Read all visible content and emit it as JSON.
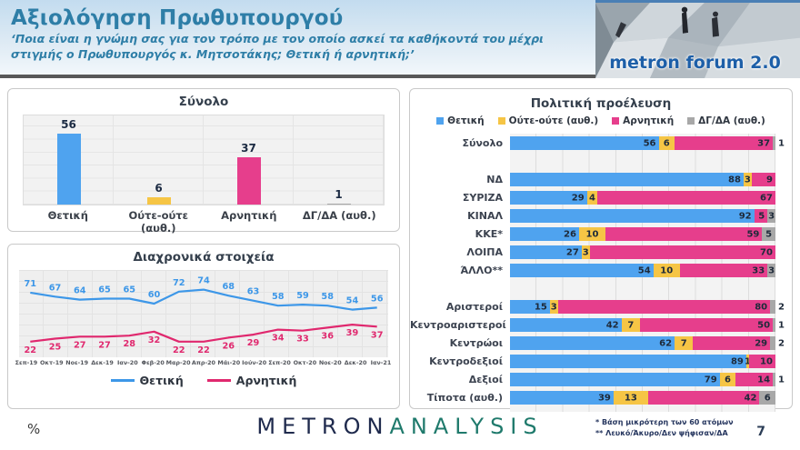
{
  "header": {
    "title": "Αξιολόγηση Πρωθυπουργού",
    "subtitle": "‘Ποια είναι η γνώμη σας για τον τρόπο με τον οποίο ασκεί τα καθήκοντά του μέχρι στιγμής ο Πρωθυπουργός κ. Μητσοτάκης; Θετική ή αρνητική;’"
  },
  "logo": {
    "text": "metron forum 2.0"
  },
  "colors": {
    "positive": "#4FA3EF",
    "neither": "#F6C545",
    "negative": "#E63E8C",
    "dk": "#A8A8A8",
    "accent_teal": "#2E7EA7",
    "header_divider": "#585858"
  },
  "chart_data": [
    {
      "type": "bar",
      "title": "Σύνολο",
      "categories": [
        "Θετική",
        "Ούτε-ούτε (αυθ.)",
        "Αρνητική",
        "ΔΓ/ΔΑ (αυθ.)"
      ],
      "values": [
        56,
        6,
        37,
        1
      ],
      "colors": [
        "#4FA3EF",
        "#F6C545",
        "#E63E8C",
        "#A8A8A8"
      ],
      "ylim": [
        0,
        70
      ],
      "grid": "horizontal"
    },
    {
      "type": "line",
      "title": "Διαχρονικά στοιχεία",
      "x": [
        "Σεπ-19",
        "Οκτ-19",
        "Νοε-19",
        "Δεκ-19",
        "Ιαν-20",
        "Φεβ-20",
        "Μαρ-20",
        "Απρ-20",
        "Μάι-20",
        "Ιούν-20",
        "Σεπ-20",
        "Οκτ-20",
        "Νοε-20",
        "Δεκ-20",
        "Ιαν-21"
      ],
      "series": [
        {
          "name": "Θετική",
          "color": "#3D97E8",
          "values": [
            71,
            67,
            64,
            65,
            65,
            60,
            72,
            74,
            68,
            63,
            58,
            59,
            58,
            54,
            56
          ]
        },
        {
          "name": "Αρνητική",
          "color": "#E0286E",
          "values": [
            22,
            25,
            27,
            27,
            28,
            32,
            22,
            22,
            26,
            29,
            34,
            33,
            36,
            39,
            37
          ]
        }
      ],
      "ylim": [
        10,
        90
      ],
      "legend_position": "bottom"
    },
    {
      "type": "bar",
      "subtype": "stacked-horizontal",
      "title": "Πολιτική προέλευση",
      "legend": [
        "Θετική",
        "Ούτε-ούτε (αυθ.)",
        "Αρνητική",
        "ΔΓ/ΔΑ (αυθ.)"
      ],
      "colors": [
        "#4FA3EF",
        "#F6C545",
        "#E63E8C",
        "#A8A8A8"
      ],
      "xlim": [
        0,
        100
      ],
      "rows": [
        {
          "label": "Σύνολο",
          "values": [
            56,
            6,
            37,
            1
          ]
        },
        {
          "label": "",
          "gap": true
        },
        {
          "label": "ΝΔ",
          "values": [
            88,
            3,
            9,
            0
          ]
        },
        {
          "label": "ΣΥΡΙΖΑ",
          "values": [
            29,
            4,
            67,
            0
          ]
        },
        {
          "label": "ΚΙΝΑΛ",
          "values": [
            92,
            0,
            5,
            3
          ]
        },
        {
          "label": "ΚΚΕ*",
          "values": [
            26,
            10,
            59,
            5
          ]
        },
        {
          "label": "ΛΟΙΠΑ",
          "values": [
            27,
            3,
            70,
            0
          ]
        },
        {
          "label": "ΆΛΛΟ**",
          "values": [
            54,
            10,
            33,
            3
          ]
        },
        {
          "label": "",
          "gap": true
        },
        {
          "label": "Αριστεροί",
          "values": [
            15,
            3,
            80,
            2
          ]
        },
        {
          "label": "Κεντροαριστεροί",
          "values": [
            42,
            7,
            50,
            1
          ]
        },
        {
          "label": "Κεντρώοι",
          "values": [
            62,
            7,
            29,
            2
          ]
        },
        {
          "label": "Κεντροδεξιοί",
          "values": [
            89,
            1,
            10,
            0
          ]
        },
        {
          "label": "Δεξιοί",
          "values": [
            79,
            6,
            14,
            1
          ]
        },
        {
          "label": "Τίποτα (αυθ.)",
          "values": [
            39,
            13,
            42,
            6
          ]
        }
      ]
    }
  ],
  "footer": {
    "percent_label": "%",
    "brand_metron": "METRON",
    "brand_analysis": "ANALYSIS",
    "footnote1": "*  Βάση μικρότερη των 60 ατόμων",
    "footnote2": "** Λευκό/Άκυρο/Δεν ψήφισαν/ΔΑ",
    "page_number": "7"
  }
}
